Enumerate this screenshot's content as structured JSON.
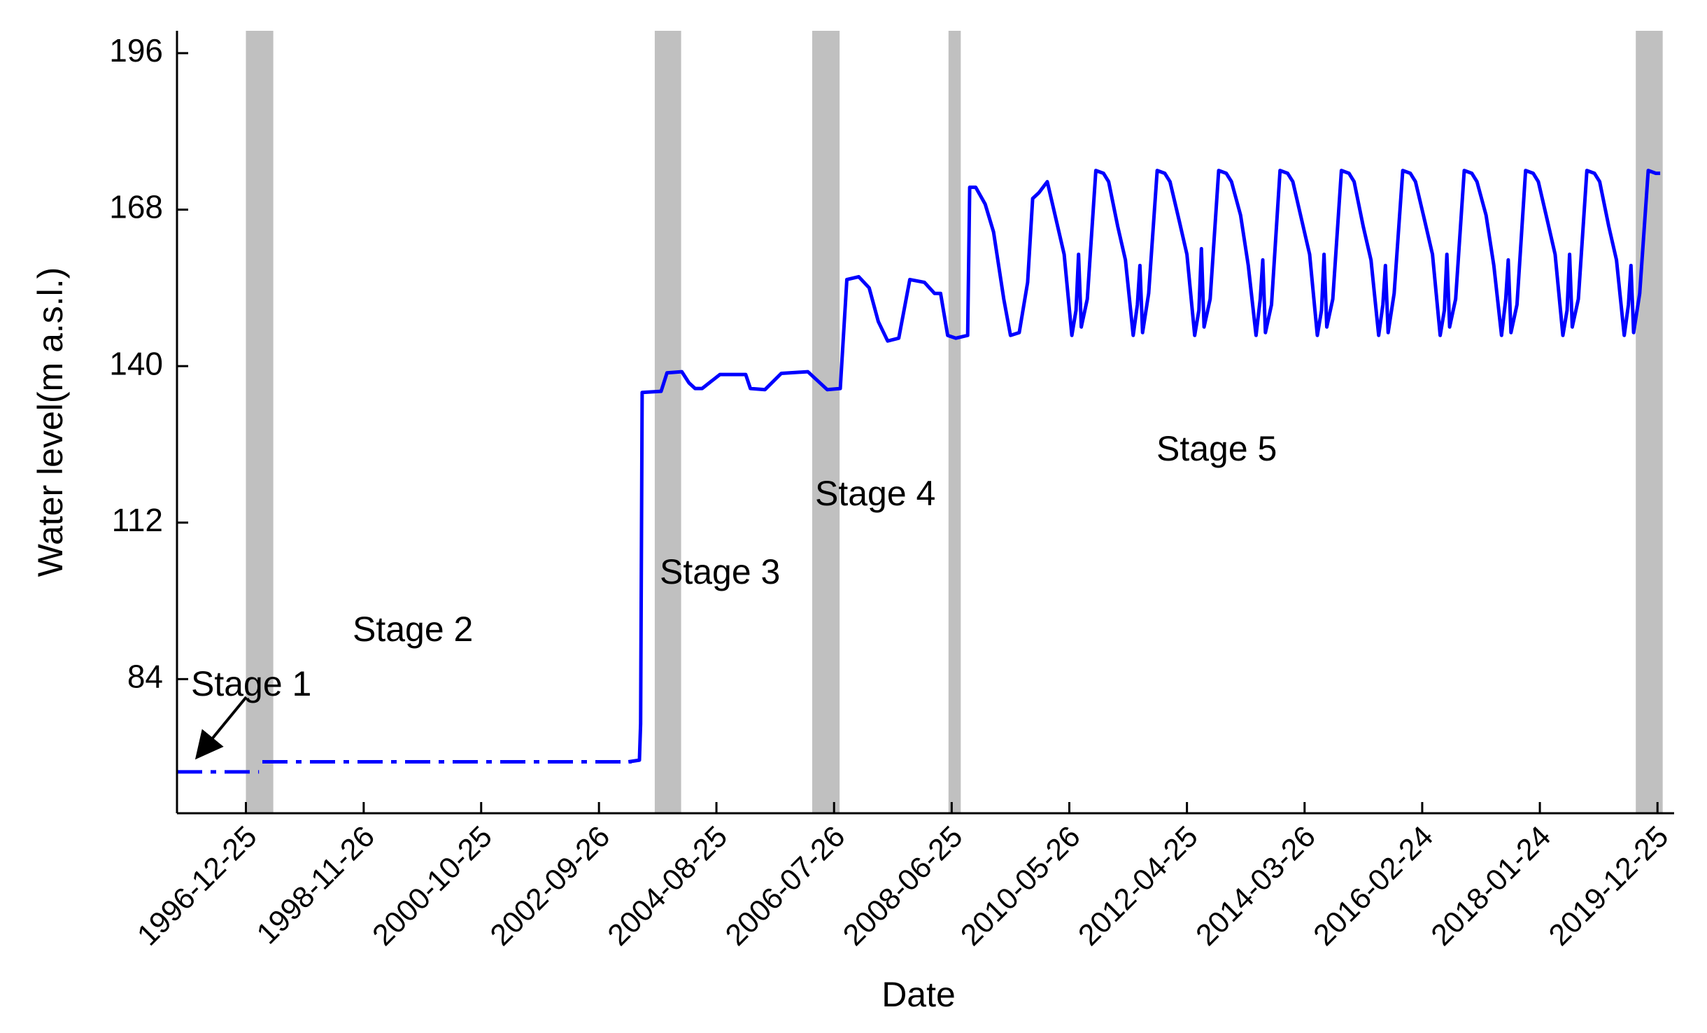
{
  "chart_data": {
    "type": "line",
    "x_label": "Date",
    "y_label": "Water level(m a.s.l.)",
    "xlim": [
      "1995-11-11",
      "2020-04-02"
    ],
    "xticks": [
      "1996-12-25",
      "1998-11-26",
      "2000-10-25",
      "2002-09-26",
      "2004-08-25",
      "2006-07-26",
      "2008-06-25",
      "2010-05-26",
      "2012-04-25",
      "2014-03-26",
      "2016-02-24",
      "2018-01-24",
      "2019-12-25"
    ],
    "ylim": [
      60,
      200
    ],
    "yticks": [
      84,
      112,
      140,
      168,
      196
    ],
    "shaded_color": "#c0c0c0",
    "shaded_periods": [
      [
        "1996-12-25",
        "1997-06-06"
      ],
      [
        "2003-08-24",
        "2004-01-28"
      ],
      [
        "2006-03-18",
        "2006-08-28"
      ],
      [
        "2008-06-06",
        "2008-08-18"
      ],
      [
        "2019-08-18",
        "2020-01-25"
      ]
    ],
    "annotations": [
      "Stage 1",
      "Stage 2",
      "Stage 3",
      "Stage 4",
      "Stage 5"
    ],
    "series": [
      {
        "color": "#0000ff",
        "linestyle": "dashdot",
        "x": [
          "1995-11-11",
          "1997-03-13",
          "1997-03-20",
          "1997-04-02",
          "2003-04-08"
        ],
        "values": [
          67.4,
          67.4,
          null,
          69.2,
          69.2
        ]
      },
      {
        "color": "#0000ff",
        "linestyle": "solid",
        "x": [
          "2003-03-20",
          "2003-05-25",
          "2003-06-01",
          "2003-06-10",
          "2003-10-01",
          "2003-11-05",
          "2004-02-01",
          "2004-03-15",
          "2004-04-20",
          "2004-06-01",
          "2004-09-15",
          "2005-02-15",
          "2005-03-15",
          "2005-06-10",
          "2005-09-15",
          "2006-02-20",
          "2006-06-15",
          "2006-09-01",
          "2006-10-10",
          "2006-12-20",
          "2007-02-20",
          "2007-04-15",
          "2007-06-10",
          "2007-08-15",
          "2007-10-20",
          "2008-01-15",
          "2008-03-15",
          "2008-04-20",
          "2008-06-01",
          "2008-07-20",
          "2008-09-28",
          "2008-10-10",
          "2008-11-15",
          "2009-01-10",
          "2009-03-01",
          "2009-05-01",
          "2009-06-10",
          "2009-08-01",
          "2009-09-20",
          "2009-10-20",
          "2009-11-25",
          "2010-01-15",
          "2010-03-10",
          "2010-04-25",
          "2010-06-10",
          "2010-07-05",
          "2010-07-20",
          "2010-08-05",
          "2010-09-10",
          "2010-10-31",
          "2010-12-15",
          "2011-01-15",
          "2011-03-10",
          "2011-04-25",
          "2011-06-10",
          "2011-07-05",
          "2011-07-20",
          "2011-08-05",
          "2011-09-10",
          "2011-10-31",
          "2011-12-15",
          "2012-01-15",
          "2012-03-10",
          "2012-04-25",
          "2012-06-10",
          "2012-07-05",
          "2012-07-20",
          "2012-08-05",
          "2012-09-10",
          "2012-10-31",
          "2012-12-15",
          "2013-01-15",
          "2013-03-10",
          "2013-04-25",
          "2013-06-10",
          "2013-07-05",
          "2013-07-20",
          "2013-08-05",
          "2013-09-10",
          "2013-10-31",
          "2013-12-15",
          "2014-01-15",
          "2014-03-10",
          "2014-04-25",
          "2014-06-10",
          "2014-07-05",
          "2014-07-20",
          "2014-08-05",
          "2014-09-10",
          "2014-10-31",
          "2014-12-15",
          "2015-01-15",
          "2015-03-10",
          "2015-04-25",
          "2015-06-10",
          "2015-07-05",
          "2015-07-20",
          "2015-08-05",
          "2015-09-10",
          "2015-10-31",
          "2015-12-15",
          "2016-01-15",
          "2016-03-10",
          "2016-04-25",
          "2016-06-10",
          "2016-07-05",
          "2016-07-20",
          "2016-08-05",
          "2016-09-10",
          "2016-10-31",
          "2016-12-15",
          "2017-01-15",
          "2017-03-10",
          "2017-04-25",
          "2017-06-10",
          "2017-07-05",
          "2017-07-20",
          "2017-08-05",
          "2017-09-10",
          "2017-10-31",
          "2017-12-15",
          "2018-01-15",
          "2018-03-10",
          "2018-04-25",
          "2018-06-10",
          "2018-07-05",
          "2018-07-20",
          "2018-08-05",
          "2018-09-10",
          "2018-10-31",
          "2018-12-15",
          "2019-01-15",
          "2019-03-10",
          "2019-04-25",
          "2019-06-10",
          "2019-07-05",
          "2019-07-20",
          "2019-08-05",
          "2019-09-10",
          "2019-10-31",
          "2019-12-15",
          "2020-01-10"
        ],
        "values": [
          69.2,
          69.5,
          76,
          135.3,
          135.5,
          138.8,
          139,
          137,
          136,
          136,
          138.5,
          138.5,
          136,
          135.8,
          138.7,
          139,
          135.8,
          136,
          155.5,
          156,
          154,
          148,
          144.5,
          145,
          155.5,
          155,
          153,
          153,
          145.5,
          145,
          145.5,
          172,
          172,
          169,
          164,
          152,
          145.5,
          146,
          155,
          170,
          171,
          173,
          166,
          160,
          145.5,
          150,
          160,
          147,
          152,
          175,
          174.5,
          173,
          165,
          159,
          145.5,
          151,
          158,
          146,
          153,
          175,
          174.5,
          173,
          166,
          160,
          145.5,
          150,
          161,
          147,
          152,
          175,
          174.5,
          173,
          167,
          158,
          145.5,
          152,
          159,
          146,
          151,
          175,
          174.5,
          173,
          166,
          160,
          145.5,
          150,
          160,
          147,
          152,
          175,
          174.5,
          173,
          165,
          159,
          145.5,
          151,
          158,
          146,
          153,
          175,
          174.5,
          173,
          166,
          160,
          145.5,
          150,
          160,
          147,
          152,
          175,
          174.5,
          173,
          167,
          158,
          145.5,
          152,
          159,
          146,
          151,
          175,
          174.5,
          173,
          166,
          160,
          145.5,
          150,
          160,
          147,
          152,
          175,
          174.5,
          173,
          165,
          159,
          145.5,
          151,
          158,
          146,
          153,
          175,
          174.5,
          174.5
        ]
      }
    ]
  }
}
